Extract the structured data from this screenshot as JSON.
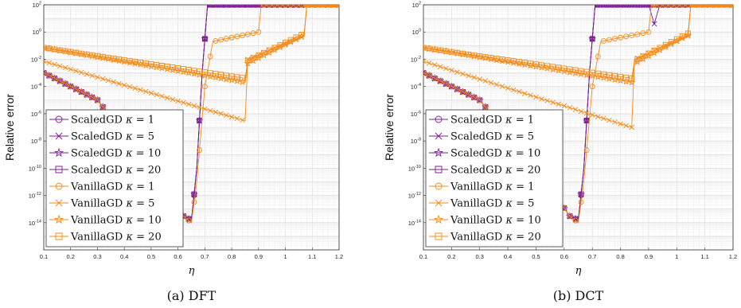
{
  "chart_data": [
    {
      "type": "line",
      "caption": "(a) DFT",
      "xlabel": "η",
      "ylabel": "Relative error",
      "xlim": [
        0.1,
        1.2
      ],
      "ylim": [
        1e-16,
        100
      ],
      "yscale": "log",
      "grid": true,
      "legend_position": "lower-left",
      "x_ticks": [
        "0.1",
        "0.2",
        "0.3",
        "0.4",
        "0.5",
        "0.6",
        "0.7",
        "0.8",
        "0.9",
        "1",
        "1.1",
        "1.2"
      ],
      "y_ticks": [
        "10^-14",
        "10^-12",
        "10^-10",
        "10^-8",
        "10^-6",
        "10^-4",
        "10^-2",
        "10^0",
        "10^2"
      ],
      "series": [
        {
          "name": "ScaledGD κ = 1",
          "marker": "circle",
          "color": "#7b1f8f",
          "x": [
            0.1,
            0.3,
            0.5,
            0.62,
            0.65,
            0.67,
            0.69,
            0.71,
            1.2
          ],
          "y": [
            0.001,
            1e-05,
            1e-10,
            3e-14,
            1e-14,
            1e-10,
            0.001,
            100,
            100
          ]
        },
        {
          "name": "ScaledGD κ = 5",
          "marker": "x",
          "color": "#7b1f8f",
          "x": [
            0.1,
            0.3,
            0.5,
            0.62,
            0.65,
            0.67,
            0.69,
            0.71,
            1.2
          ],
          "y": [
            0.001,
            1e-05,
            1e-10,
            3e-14,
            1.5e-14,
            1e-10,
            0.001,
            100,
            100
          ]
        },
        {
          "name": "ScaledGD κ = 10",
          "marker": "star",
          "color": "#7b1f8f",
          "x": [
            0.1,
            0.3,
            0.5,
            0.62,
            0.65,
            0.67,
            0.69,
            0.71,
            1.2
          ],
          "y": [
            0.001,
            1e-05,
            1e-10,
            3e-14,
            1.5e-14,
            1e-10,
            0.001,
            100,
            100
          ]
        },
        {
          "name": "ScaledGD κ = 20",
          "marker": "square",
          "color": "#7b1f8f",
          "x": [
            0.1,
            0.3,
            0.5,
            0.62,
            0.65,
            0.67,
            0.69,
            0.71,
            1.2
          ],
          "y": [
            0.001,
            1e-05,
            1e-10,
            3e-14,
            1.5e-14,
            1e-10,
            0.001,
            100,
            100
          ]
        },
        {
          "name": "VanillaGD κ = 1",
          "marker": "circle",
          "color": "#f28c1a",
          "x": [
            0.1,
            0.3,
            0.5,
            0.62,
            0.65,
            0.67,
            0.7,
            0.73,
            0.9,
            0.91,
            1.2
          ],
          "y": [
            0.001,
            1e-05,
            1e-10,
            3e-14,
            1e-14,
            1e-11,
            0.0001,
            0.2,
            1,
            100,
            100
          ]
        },
        {
          "name": "VanillaGD κ = 5",
          "marker": "x",
          "color": "#f28c1a",
          "x": [
            0.1,
            0.85,
            0.86,
            1.07,
            1.08,
            1.2
          ],
          "y": [
            0.007,
            3e-07,
            0.01,
            0.5,
            100,
            100
          ]
        },
        {
          "name": "VanillaGD κ = 10",
          "marker": "star",
          "color": "#f28c1a",
          "x": [
            0.1,
            0.85,
            0.86,
            1.07,
            1.08,
            1.2
          ],
          "y": [
            0.07,
            0.0002,
            0.005,
            0.6,
            100,
            100
          ]
        },
        {
          "name": "VanillaGD κ = 20",
          "marker": "square",
          "color": "#f28c1a",
          "x": [
            0.1,
            0.85,
            0.86,
            1.07,
            1.08,
            1.2
          ],
          "y": [
            0.07,
            0.0004,
            0.008,
            0.8,
            100,
            100
          ]
        }
      ]
    },
    {
      "type": "line",
      "caption": "(b) DCT",
      "xlabel": "η",
      "ylabel": "Relative error",
      "xlim": [
        0.1,
        1.2
      ],
      "ylim": [
        1e-16,
        100
      ],
      "yscale": "log",
      "grid": true,
      "legend_position": "lower-left",
      "x_ticks": [
        "0.1",
        "0.2",
        "0.3",
        "0.4",
        "0.5",
        "0.6",
        "0.7",
        "0.8",
        "0.9",
        "1",
        "1.1",
        "1.2"
      ],
      "y_ticks": [
        "10^-14",
        "10^-12",
        "10^-10",
        "10^-8",
        "10^-6",
        "10^-4",
        "10^-2",
        "10^0",
        "10^2"
      ],
      "series": [
        {
          "name": "ScaledGD κ = 1",
          "marker": "circle",
          "color": "#7b1f8f",
          "x": [
            0.1,
            0.3,
            0.5,
            0.62,
            0.65,
            0.67,
            0.69,
            0.71,
            1.2
          ],
          "y": [
            0.001,
            1e-05,
            1e-10,
            3e-14,
            1e-14,
            1e-10,
            0.001,
            100,
            100
          ]
        },
        {
          "name": "ScaledGD κ = 5",
          "marker": "x",
          "color": "#7b1f8f",
          "x": [
            0.1,
            0.3,
            0.5,
            0.62,
            0.65,
            0.67,
            0.69,
            0.71,
            0.9,
            0.92,
            0.94,
            1.2
          ],
          "y": [
            0.001,
            1e-05,
            1e-10,
            3e-14,
            1.5e-14,
            1e-10,
            0.001,
            100,
            100,
            4,
            100,
            100
          ]
        },
        {
          "name": "ScaledGD κ = 10",
          "marker": "star",
          "color": "#7b1f8f",
          "x": [
            0.1,
            0.3,
            0.5,
            0.62,
            0.65,
            0.67,
            0.69,
            0.71,
            1.2
          ],
          "y": [
            0.001,
            1e-05,
            1e-10,
            3e-14,
            1.5e-14,
            1e-10,
            0.001,
            100,
            100
          ]
        },
        {
          "name": "ScaledGD κ = 20",
          "marker": "square",
          "color": "#7b1f8f",
          "x": [
            0.1,
            0.3,
            0.5,
            0.62,
            0.65,
            0.67,
            0.69,
            0.71,
            1.2
          ],
          "y": [
            0.001,
            1e-05,
            1e-10,
            3e-14,
            1.5e-14,
            1e-10,
            0.001,
            100,
            100
          ]
        },
        {
          "name": "VanillaGD κ = 1",
          "marker": "circle",
          "color": "#f28c1a",
          "x": [
            0.1,
            0.3,
            0.5,
            0.62,
            0.65,
            0.67,
            0.7,
            0.73,
            0.9,
            0.91,
            1.2
          ],
          "y": [
            0.001,
            1e-05,
            1e-10,
            3e-14,
            1e-14,
            1e-11,
            0.0001,
            0.2,
            1,
            100,
            100
          ]
        },
        {
          "name": "VanillaGD κ = 5",
          "marker": "x",
          "color": "#f28c1a",
          "x": [
            0.1,
            0.84,
            0.85,
            1.04,
            1.05,
            1.2
          ],
          "y": [
            0.007,
            1e-07,
            0.01,
            0.5,
            100,
            100
          ]
        },
        {
          "name": "VanillaGD κ = 10",
          "marker": "star",
          "color": "#f28c1a",
          "x": [
            0.1,
            0.84,
            0.85,
            1.04,
            1.05,
            1.2
          ],
          "y": [
            0.07,
            0.0002,
            0.005,
            0.6,
            100,
            100
          ]
        },
        {
          "name": "VanillaGD κ = 20",
          "marker": "square",
          "color": "#f28c1a",
          "x": [
            0.1,
            0.84,
            0.85,
            1.04,
            1.05,
            1.2
          ],
          "y": [
            0.07,
            0.0004,
            0.008,
            0.8,
            100,
            100
          ]
        }
      ]
    }
  ]
}
